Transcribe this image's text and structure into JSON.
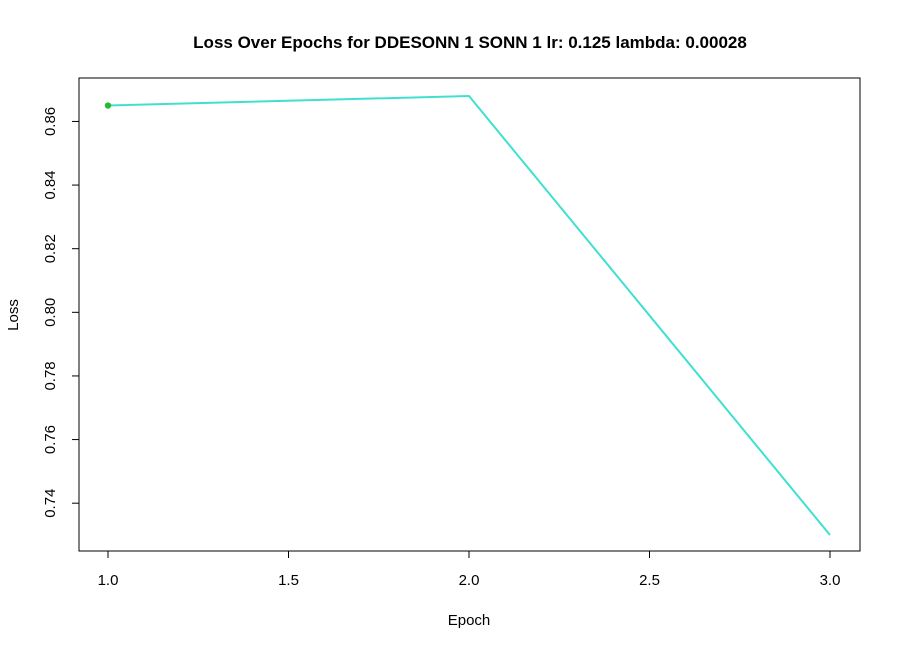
{
  "chart_data": {
    "type": "line",
    "title": "Loss Over Epochs for DDESONN 1 SONN 1 lr: 0.125 lambda: 0.00028",
    "xlabel": "Epoch",
    "ylabel": "Loss",
    "xlim": [
      1.0,
      3.0
    ],
    "ylim": [
      0.73,
      0.868
    ],
    "x_ticks": [
      "1.0",
      "1.5",
      "2.0",
      "2.5",
      "3.0"
    ],
    "y_ticks": [
      "0.74",
      "0.76",
      "0.78",
      "0.80",
      "0.82",
      "0.84",
      "0.86"
    ],
    "grid": false,
    "series": [
      {
        "x": [
          1,
          2,
          3
        ],
        "values": [
          0.865,
          0.868,
          0.73
        ],
        "line_color": "#40E0D0",
        "marker_color": "#22BB33"
      }
    ]
  }
}
